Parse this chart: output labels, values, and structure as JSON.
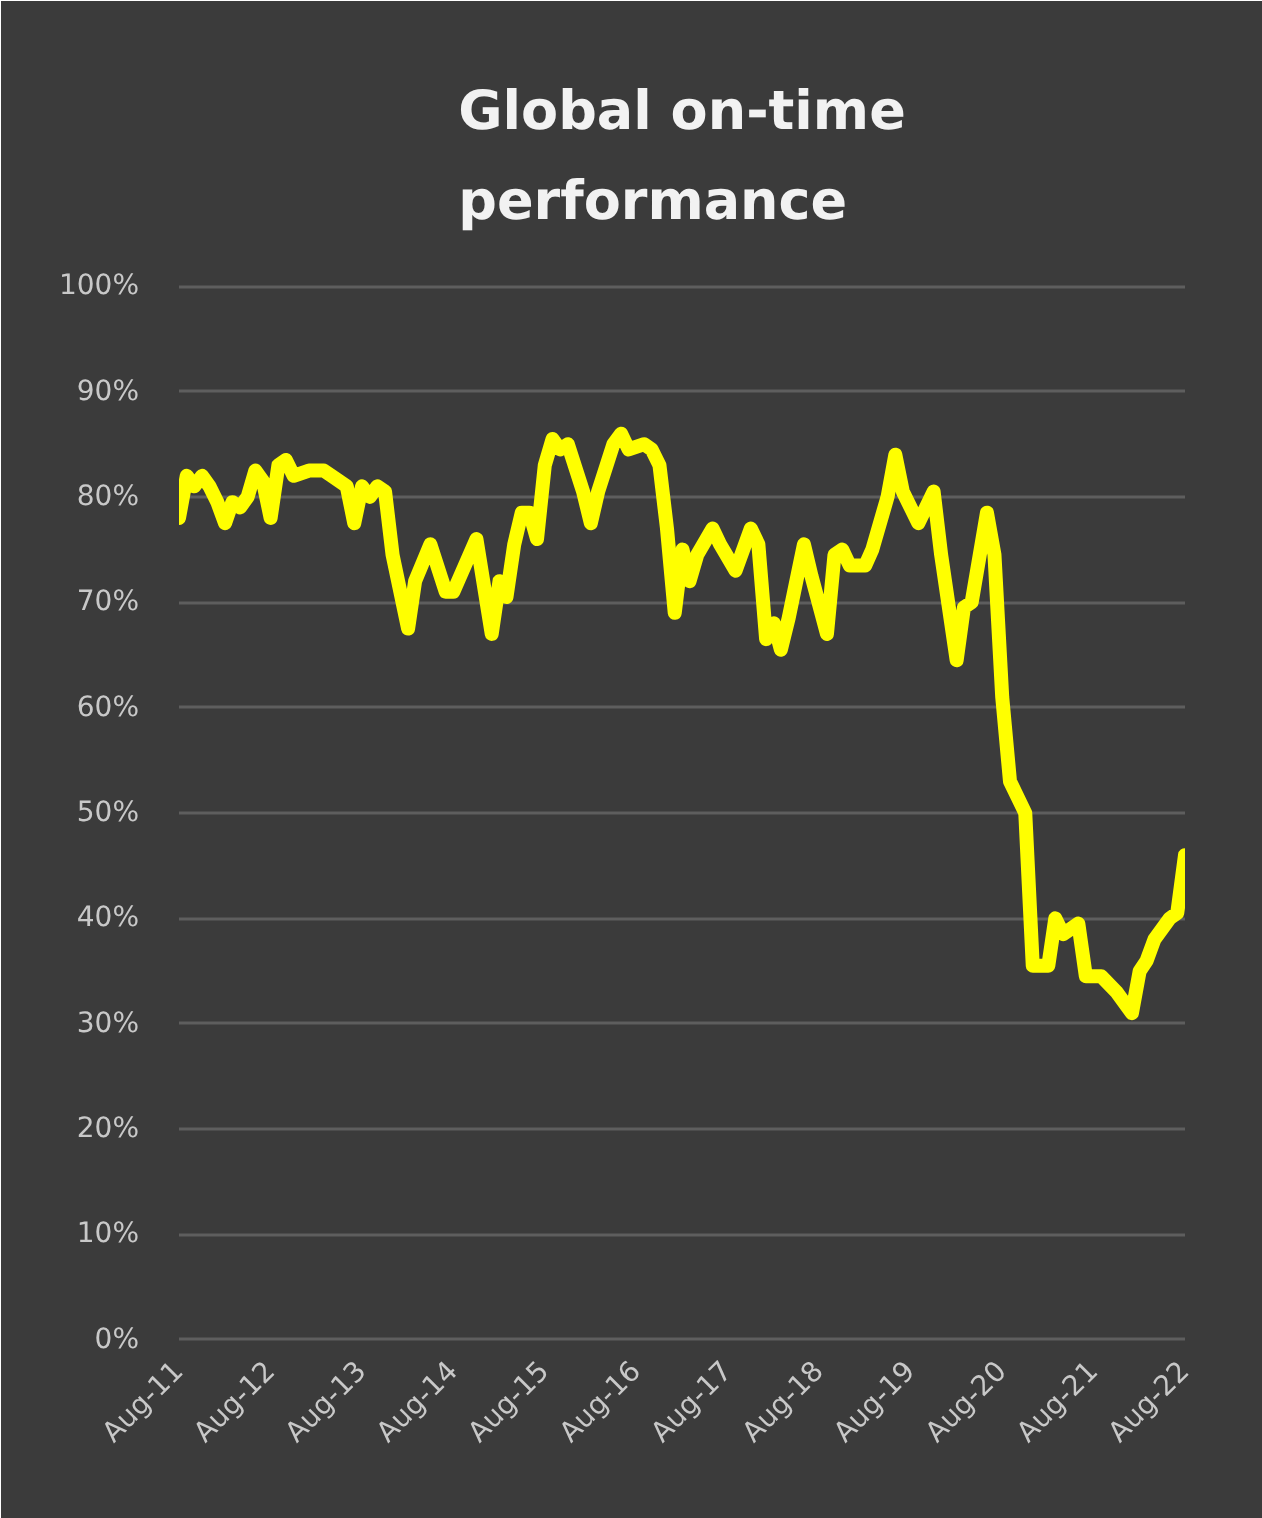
{
  "chart_data": {
    "type": "line",
    "title": "Global on-time performance",
    "x": [
      "2011-08",
      "2011-09",
      "2011-10",
      "2011-11",
      "2011-12",
      "2012-01",
      "2012-02",
      "2012-03",
      "2012-04",
      "2012-05",
      "2012-06",
      "2012-07",
      "2012-08",
      "2012-09",
      "2012-10",
      "2012-11",
      "2013-01",
      "2013-03",
      "2013-04",
      "2013-06",
      "2013-07",
      "2013-08",
      "2013-09",
      "2013-10",
      "2013-11",
      "2013-12",
      "2014-02",
      "2014-03",
      "2014-05",
      "2014-07",
      "2014-08",
      "2014-11",
      "2015-01",
      "2015-02",
      "2015-03",
      "2015-04",
      "2015-05",
      "2015-06",
      "2015-07",
      "2015-08",
      "2015-09",
      "2015-10",
      "2015-11",
      "2016-01",
      "2016-02",
      "2016-03",
      "2016-05",
      "2016-06",
      "2016-07",
      "2016-09",
      "2016-10",
      "2016-11",
      "2016-12",
      "2017-01",
      "2017-02",
      "2017-03",
      "2017-04",
      "2017-06",
      "2017-07",
      "2017-09",
      "2017-11",
      "2017-12",
      "2018-01",
      "2018-02",
      "2018-03",
      "2018-04",
      "2018-06",
      "2018-07",
      "2018-09",
      "2018-10",
      "2018-11",
      "2018-12",
      "2019-02",
      "2019-03",
      "2019-05",
      "2019-06",
      "2019-07",
      "2019-09",
      "2019-11",
      "2019-12",
      "2020-02",
      "2020-03",
      "2020-04",
      "2020-06",
      "2020-07",
      "2020-08",
      "2020-09",
      "2020-11",
      "2020-12",
      "2021-02",
      "2021-03",
      "2021-04",
      "2021-06",
      "2021-07",
      "2021-09",
      "2021-11",
      "2022-01",
      "2022-02",
      "2022-03",
      "2022-04",
      "2022-06",
      "2022-07",
      "2022-08"
    ],
    "series": [
      {
        "color": "#ffff00",
        "values": [
          78,
          82,
          81,
          82,
          81,
          79.5,
          77.5,
          79.5,
          79,
          80,
          82.5,
          81.5,
          78,
          83,
          83.5,
          82,
          82.5,
          82.5,
          82,
          81,
          77.5,
          81,
          80,
          81,
          80.5,
          74.5,
          67.5,
          72,
          75.5,
          71,
          71,
          76,
          67,
          72,
          70.5,
          75.5,
          78.5,
          78.5,
          76,
          83,
          85.5,
          84.5,
          85,
          80.5,
          77.5,
          80.5,
          85,
          86,
          84.5,
          85,
          84.5,
          83,
          77,
          69,
          75,
          72,
          74.5,
          77,
          75.5,
          73,
          77,
          75.5,
          66.5,
          68,
          65.5,
          68.5,
          75.5,
          72.5,
          67,
          74.5,
          75,
          73.5,
          73.5,
          75,
          80,
          84,
          80.5,
          77.5,
          80.5,
          74.5,
          64.5,
          69.5,
          70,
          78.5,
          74.5,
          61,
          53,
          50,
          35.5,
          35.5,
          40,
          38.5,
          39.5,
          34.5,
          34.5,
          33,
          31,
          35,
          36,
          38,
          40,
          40.5,
          46
        ]
      }
    ],
    "xlim": [
      "2011-08",
      "2022-08"
    ],
    "xticks": [
      {
        "value": "2011-08",
        "label": "Aug-11"
      },
      {
        "value": "2012-08",
        "label": "Aug-12"
      },
      {
        "value": "2013-08",
        "label": "Aug-13"
      },
      {
        "value": "2014-08",
        "label": "Aug-14"
      },
      {
        "value": "2015-08",
        "label": "Aug-15"
      },
      {
        "value": "2016-08",
        "label": "Aug-16"
      },
      {
        "value": "2017-08",
        "label": "Aug-17"
      },
      {
        "value": "2018-08",
        "label": "Aug-18"
      },
      {
        "value": "2019-08",
        "label": "Aug-19"
      },
      {
        "value": "2020-08",
        "label": "Aug-20"
      },
      {
        "value": "2021-08",
        "label": "Aug-21"
      },
      {
        "value": "2022-08",
        "label": "Aug-22"
      }
    ],
    "ylim": [
      0,
      100
    ],
    "yticks": [
      {
        "value": 0,
        "label": "0%"
      },
      {
        "value": 10,
        "label": "10%"
      },
      {
        "value": 20,
        "label": "20%"
      },
      {
        "value": 30,
        "label": "30%"
      },
      {
        "value": 40,
        "label": "40%"
      },
      {
        "value": 50,
        "label": "50%"
      },
      {
        "value": 60,
        "label": "60%"
      },
      {
        "value": 70,
        "label": "70%"
      },
      {
        "value": 80,
        "label": "80%"
      },
      {
        "value": 90,
        "label": "90%"
      },
      {
        "value": 100,
        "label": "100%"
      }
    ],
    "grid": "y",
    "line_style": "solid"
  }
}
